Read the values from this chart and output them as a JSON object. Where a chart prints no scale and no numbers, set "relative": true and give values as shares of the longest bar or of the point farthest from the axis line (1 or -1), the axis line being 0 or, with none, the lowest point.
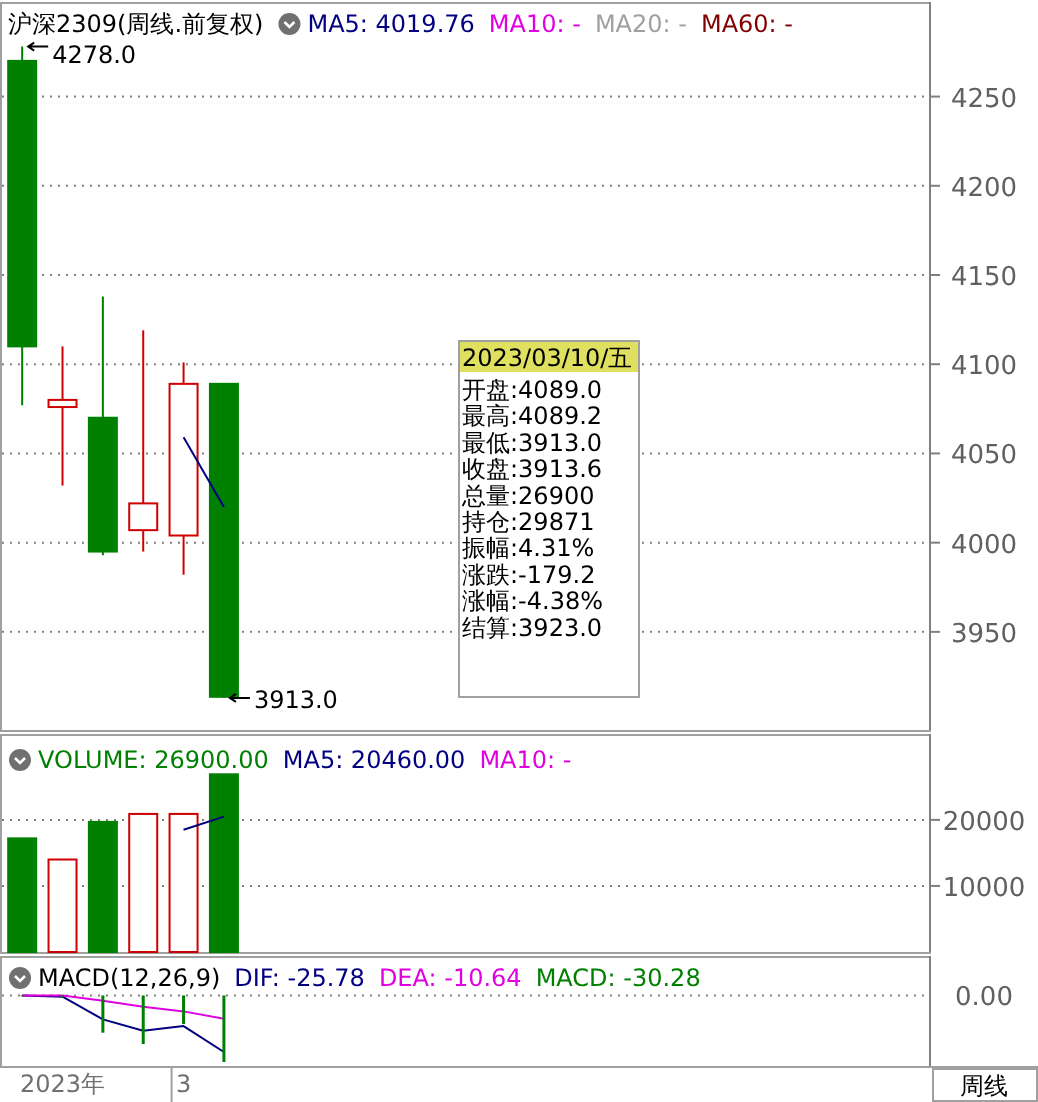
{
  "chart_data": [
    {
      "type": "candlestick",
      "title": "沪深2309(周线.前复权)",
      "categories": [
        null,
        null,
        null,
        null,
        null,
        null,
        null,
        null,
        null,
        null,
        null,
        null,
        null,
        null,
        null,
        null,
        null,
        null,
        null,
        null,
        null,
        null,
        null
      ],
      "ohlc": [
        [
          4270,
          4278,
          4077,
          4110
        ],
        [
          4076,
          4110,
          4032,
          4080
        ],
        [
          4070,
          4138,
          3993,
          3995
        ],
        [
          4007,
          4119,
          3995,
          4022
        ],
        [
          4004,
          4101,
          3982,
          4089
        ],
        [
          4089,
          4089.2,
          3913.0,
          3913.6
        ],
        null,
        null,
        null,
        null,
        null,
        null,
        null,
        null,
        null,
        null,
        null,
        null,
        null,
        null,
        null,
        null,
        null
      ],
      "colors": [
        "#008000",
        "#d00000",
        "#008000",
        "#d00000",
        "#d00000",
        "#008000",
        null,
        null,
        null,
        null,
        null,
        null,
        null,
        null,
        null,
        null,
        null,
        null,
        null,
        null,
        null,
        null,
        null
      ],
      "series": [
        {
          "name": "MA5: 4019.76",
          "type": "line",
          "color": "#000080",
          "values": [
            null,
            null,
            null,
            null,
            4059,
            4020,
            null,
            null,
            null,
            null,
            null,
            null,
            null,
            null,
            null,
            null,
            null,
            null,
            null,
            null,
            null,
            null,
            null
          ]
        },
        {
          "name": "MA10: -",
          "type": "line",
          "color": "#e000e0",
          "values": [
            null,
            null,
            null,
            null,
            null,
            null,
            null,
            null,
            null,
            null,
            null,
            null,
            null,
            null,
            null,
            null,
            null,
            null,
            null,
            null,
            null,
            null,
            null
          ]
        },
        {
          "name": "MA20: -",
          "type": "line",
          "color": "#a0a0a0",
          "values": [
            null,
            null,
            null,
            null,
            null,
            null,
            null,
            null,
            null,
            null,
            null,
            null,
            null,
            null,
            null,
            null,
            null,
            null,
            null,
            null,
            null,
            null,
            null
          ]
        },
        {
          "name": "MA60: -",
          "type": "line",
          "color": "#800000",
          "values": [
            null,
            null,
            null,
            null,
            null,
            null,
            null,
            null,
            null,
            null,
            null,
            null,
            null,
            null,
            null,
            null,
            null,
            null,
            null,
            null,
            null,
            null,
            null
          ]
        }
      ],
      "ylim": [
        3895,
        4303
      ],
      "yticks": [
        3950,
        4000,
        4050,
        4100,
        4150,
        4200,
        4250
      ],
      "grid": "y",
      "legend": "top left",
      "tick_labels": "y",
      "annotations": [
        "4278.0",
        "3913.0"
      ]
    },
    {
      "type": "other",
      "title": "2023/03/10/五",
      "annotations": [
        "开盘:4089.0",
        "最高:4089.2",
        "最低:3913.0",
        "收盘:3913.6",
        "总量:26900",
        "持仓:29871",
        "振幅:4.31%",
        "涨跌:-179.2",
        "涨幅:-4.38%",
        "结算:3923.0"
      ]
    },
    {
      "type": "bar",
      "categories": [
        null,
        null,
        null,
        null,
        null,
        null,
        null,
        null,
        null,
        null,
        null,
        null,
        null,
        null,
        null,
        null,
        null,
        null,
        null,
        null,
        null,
        null,
        null
      ],
      "series": [
        {
          "name": "VOLUME: 26900.00",
          "type": "bar",
          "color": "#008000",
          "colors": [
            "#008000",
            "#d00000",
            "#008000",
            "#d00000",
            "#d00000",
            "#008000",
            null,
            null,
            null,
            null,
            null,
            null,
            null,
            null,
            null,
            null,
            null,
            null,
            null,
            null,
            null,
            null,
            null
          ],
          "values": [
            17200,
            14000,
            19700,
            20900,
            20900,
            26900,
            null,
            null,
            null,
            null,
            null,
            null,
            null,
            null,
            null,
            null,
            null,
            null,
            null,
            null,
            null,
            null,
            null
          ]
        },
        {
          "name": "MA5: 20460.00",
          "type": "line",
          "color": "#000080",
          "values": [
            null,
            null,
            null,
            null,
            18500,
            20500,
            null,
            null,
            null,
            null,
            null,
            null,
            null,
            null,
            null,
            null,
            null,
            null,
            null,
            null,
            null,
            null,
            null
          ]
        },
        {
          "name": "MA10: -",
          "type": "line",
          "color": "#e000e0",
          "values": [
            null,
            null,
            null,
            null,
            null,
            null,
            null,
            null,
            null,
            null,
            null,
            null,
            null,
            null,
            null,
            null,
            null,
            null,
            null,
            null,
            null,
            null,
            null
          ]
        }
      ],
      "ylim": [
        0,
        33000
      ],
      "yticks": [
        10000,
        20000
      ],
      "grid": "y",
      "legend": "top left",
      "tick_labels": "y"
    },
    {
      "type": "line",
      "title": "MACD(12,26,9)",
      "relative": true,
      "categories": [
        null,
        "2023年",
        null,
        null,
        "3",
        null,
        null,
        null,
        null,
        null,
        null,
        null,
        null,
        null,
        null,
        null,
        null,
        null,
        null,
        null,
        null,
        null,
        null
      ],
      "series": [
        {
          "name": "DIF: -25.78",
          "type": "line",
          "color": "#000080",
          "values": [
            0,
            -0.02,
            -0.36,
            -0.53,
            -0.46,
            -0.85,
            null,
            null,
            null,
            null,
            null,
            null,
            null,
            null,
            null,
            null,
            null,
            null,
            null,
            null,
            null,
            null,
            null
          ]
        },
        {
          "name": "DEA: -10.64",
          "type": "line",
          "color": "#e000e0",
          "values": [
            0,
            0,
            -0.08,
            -0.17,
            -0.24,
            -0.35,
            null,
            null,
            null,
            null,
            null,
            null,
            null,
            null,
            null,
            null,
            null,
            null,
            null,
            null,
            null,
            null,
            null
          ]
        },
        {
          "name": "MACD: -30.28",
          "type": "bar",
          "color": "#008000",
          "values": [
            0,
            -0.03,
            -0.56,
            -0.73,
            -0.43,
            -1,
            null,
            null,
            null,
            null,
            null,
            null,
            null,
            null,
            null,
            null,
            null,
            null,
            null,
            null,
            null,
            null,
            null
          ]
        }
      ],
      "legend": "top",
      "annotations": [
        "0.00",
        "周线"
      ]
    }
  ]
}
